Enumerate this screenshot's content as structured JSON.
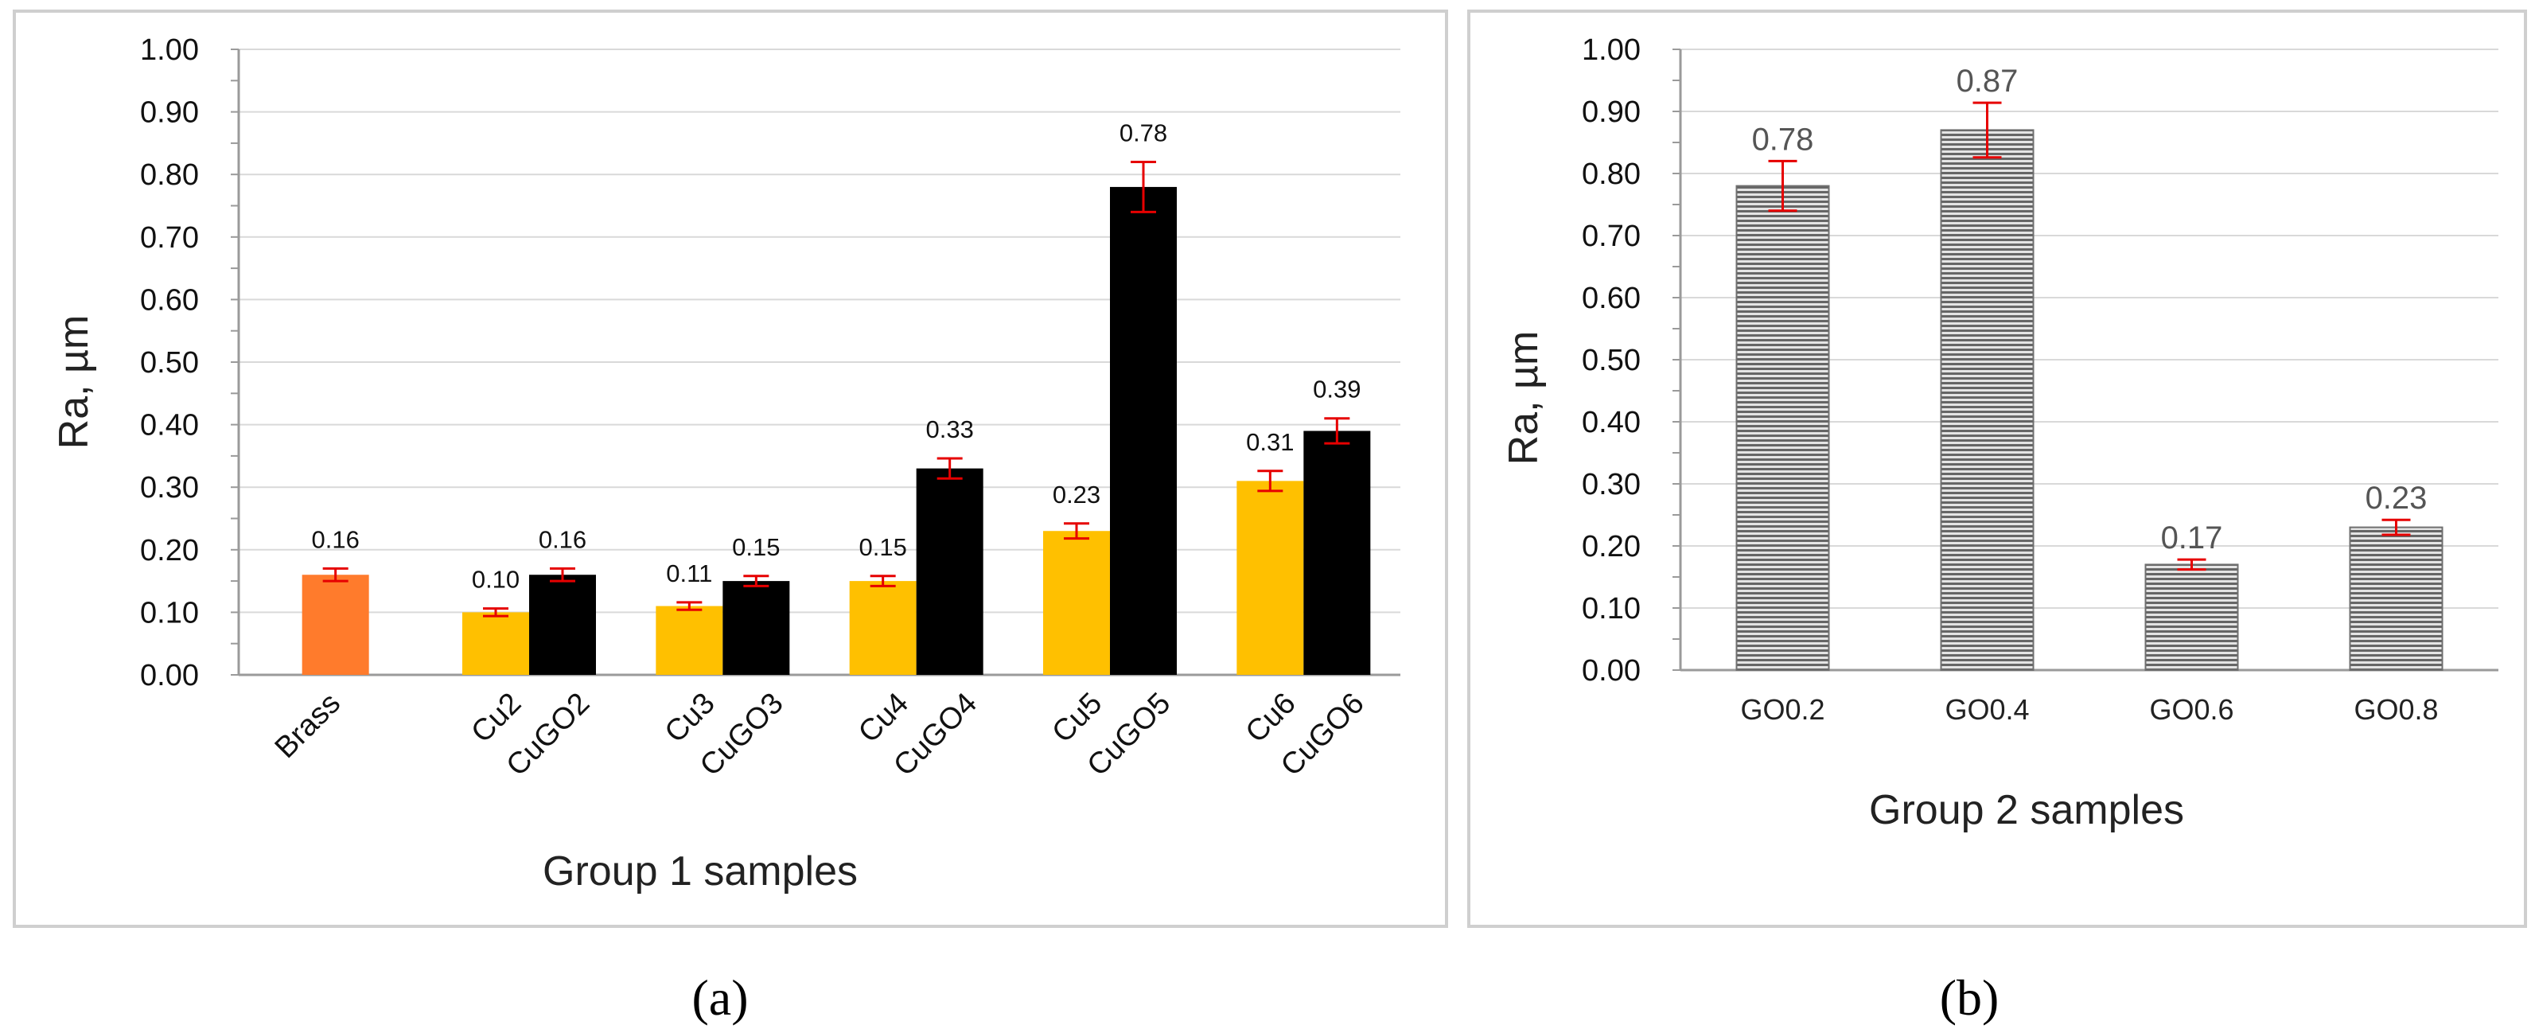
{
  "chart_data": [
    {
      "panel": "(a)",
      "type": "bar",
      "xlabel": "Group 1 samples",
      "ylabel": "Ra, µm",
      "ylim": [
        0,
        1.0
      ],
      "yticks": [
        "0.00",
        "0.10",
        "0.20",
        "0.30",
        "0.40",
        "0.50",
        "0.60",
        "0.70",
        "0.80",
        "0.90",
        "1.00"
      ],
      "groups": [
        {
          "labels": [
            "Brass"
          ],
          "bars": [
            {
              "series": "Brass",
              "value": 0.16,
              "error": 0.01,
              "label": "0.16"
            }
          ]
        },
        {
          "labels": [
            "Cu2",
            "CuGO2"
          ],
          "bars": [
            {
              "series": "Cu",
              "value": 0.1,
              "error": 0.006,
              "label": "0.10"
            },
            {
              "series": "CuGO",
              "value": 0.16,
              "error": 0.01,
              "label": "0.16"
            }
          ]
        },
        {
          "labels": [
            "Cu3",
            "CuGO3"
          ],
          "bars": [
            {
              "series": "Cu",
              "value": 0.11,
              "error": 0.006,
              "label": "0.11"
            },
            {
              "series": "CuGO",
              "value": 0.15,
              "error": 0.008,
              "label": "0.15"
            }
          ]
        },
        {
          "labels": [
            "Cu4",
            "CuGO4"
          ],
          "bars": [
            {
              "series": "Cu",
              "value": 0.15,
              "error": 0.008,
              "label": "0.15"
            },
            {
              "series": "CuGO",
              "value": 0.33,
              "error": 0.016,
              "label": "0.33"
            }
          ]
        },
        {
          "labels": [
            "Cu5",
            "CuGO5"
          ],
          "bars": [
            {
              "series": "Cu",
              "value": 0.23,
              "error": 0.012,
              "label": "0.23"
            },
            {
              "series": "CuGO",
              "value": 0.78,
              "error": 0.04,
              "label": "0.78"
            }
          ]
        },
        {
          "labels": [
            "Cu6",
            "CuGO6"
          ],
          "bars": [
            {
              "series": "Cu",
              "value": 0.31,
              "error": 0.016,
              "label": "0.31"
            },
            {
              "series": "CuGO",
              "value": 0.39,
              "error": 0.02,
              "label": "0.39"
            }
          ]
        }
      ],
      "colors": {
        "Brass": "#ff7b2c",
        "Cu": "#ffc000",
        "CuGO": "#000000",
        "error": "#e60000"
      }
    },
    {
      "panel": "(b)",
      "type": "bar",
      "xlabel": "Group 2 samples",
      "ylabel": "Ra, µm",
      "ylim": [
        0,
        1.0
      ],
      "yticks": [
        "0.00",
        "0.10",
        "0.20",
        "0.30",
        "0.40",
        "0.50",
        "0.60",
        "0.70",
        "0.80",
        "0.90",
        "1.00"
      ],
      "categories": [
        "GO0.2",
        "GO0.4",
        "GO0.6",
        "GO0.8"
      ],
      "values": [
        0.78,
        0.87,
        0.17,
        0.23
      ],
      "errors": [
        0.04,
        0.044,
        0.008,
        0.012
      ],
      "labels": [
        "0.78",
        "0.87",
        "0.17",
        "0.23"
      ],
      "colors": {
        "bar": "#6f6f6f",
        "error": "#e60000"
      }
    }
  ]
}
